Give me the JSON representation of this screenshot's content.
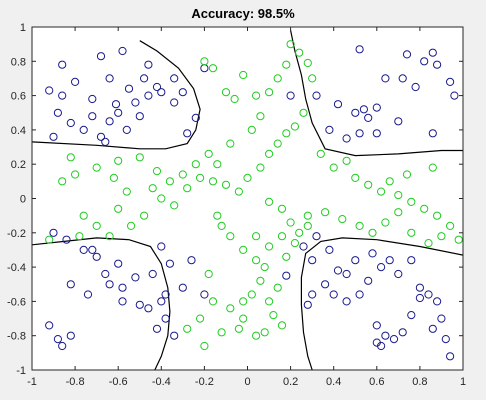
{
  "chart_data": {
    "type": "scatter",
    "title": "Accuracy: 98.5%",
    "xlabel": "",
    "ylabel": "",
    "xlim": [
      -1,
      1
    ],
    "ylim": [
      -1,
      1
    ],
    "x_ticks": [
      -1,
      -0.8,
      -0.6,
      -0.4,
      -0.2,
      0,
      0.2,
      0.4,
      0.6,
      0.8,
      1
    ],
    "y_ticks": [
      -1,
      -0.8,
      -0.6,
      -0.4,
      -0.2,
      0,
      0.2,
      0.4,
      0.6,
      0.8,
      1
    ],
    "grid": false,
    "colors": {
      "class_blue": "#1a1a8c",
      "class_green": "#22cc22",
      "boundary": "#000000",
      "axes_bg": "#ffffff",
      "figure_bg": "#f0f0f0"
    },
    "series": [
      {
        "marker": "circle-open",
        "color": "#1a1a8c",
        "points": [
          [
            -0.92,
            0.63
          ],
          [
            -0.86,
            0.6
          ],
          [
            -0.8,
            0.68
          ],
          [
            -0.72,
            0.58
          ],
          [
            -0.64,
            0.7
          ],
          [
            -0.58,
            0.86
          ],
          [
            -0.76,
            0.4
          ],
          [
            -0.88,
            0.5
          ],
          [
            -0.82,
            0.44
          ],
          [
            -0.68,
            0.36
          ],
          [
            -0.6,
            0.5
          ],
          [
            -0.52,
            0.56
          ],
          [
            -0.46,
            0.6
          ],
          [
            -0.4,
            0.62
          ],
          [
            -0.5,
            0.48
          ],
          [
            -0.64,
            0.45
          ],
          [
            -0.72,
            0.48
          ],
          [
            -0.66,
            0.33
          ],
          [
            -0.9,
            0.36
          ],
          [
            -0.86,
            0.78
          ],
          [
            -0.56,
            0.4
          ],
          [
            -0.48,
            0.7
          ],
          [
            -0.42,
            0.65
          ],
          [
            -0.34,
            0.7
          ],
          [
            -0.3,
            0.62
          ],
          [
            -0.24,
            0.47
          ],
          [
            -0.2,
            0.76
          ],
          [
            -0.68,
            0.83
          ],
          [
            -0.61,
            0.55
          ],
          [
            -0.28,
            0.38
          ],
          [
            -0.34,
            0.56
          ],
          [
            -0.55,
            0.64
          ],
          [
            -0.46,
            0.78
          ],
          [
            0.2,
            0.6
          ],
          [
            0.32,
            0.6
          ],
          [
            0.38,
            0.4
          ],
          [
            0.42,
            0.55
          ],
          [
            0.5,
            0.5
          ],
          [
            0.46,
            0.35
          ],
          [
            0.52,
            0.38
          ],
          [
            0.56,
            0.47
          ],
          [
            0.6,
            0.53
          ],
          [
            0.64,
            0.7
          ],
          [
            0.72,
            0.7
          ],
          [
            0.78,
            0.65
          ],
          [
            0.82,
            0.8
          ],
          [
            0.86,
            0.85
          ],
          [
            0.88,
            0.78
          ],
          [
            0.94,
            0.68
          ],
          [
            0.7,
            0.45
          ],
          [
            0.6,
            0.38
          ],
          [
            0.54,
            0.52
          ],
          [
            0.74,
            0.84
          ],
          [
            0.86,
            0.38
          ],
          [
            0.52,
            0.87
          ],
          [
            0.96,
            0.6
          ],
          [
            -0.9,
            -0.2
          ],
          [
            -0.82,
            -0.5
          ],
          [
            -0.76,
            -0.3
          ],
          [
            -0.7,
            -0.34
          ],
          [
            -0.64,
            -0.5
          ],
          [
            -0.58,
            -0.52
          ],
          [
            -0.6,
            -0.38
          ],
          [
            -0.52,
            -0.46
          ],
          [
            -0.44,
            -0.44
          ],
          [
            -0.4,
            -0.6
          ],
          [
            -0.46,
            -0.64
          ],
          [
            -0.42,
            -0.76
          ],
          [
            -0.38,
            -0.7
          ],
          [
            -0.5,
            -0.62
          ],
          [
            -0.72,
            -0.3
          ],
          [
            -0.66,
            -0.44
          ],
          [
            -0.74,
            -0.56
          ],
          [
            -0.92,
            -0.74
          ],
          [
            -0.86,
            -0.86
          ],
          [
            -0.82,
            -0.8
          ],
          [
            -0.58,
            -0.6
          ],
          [
            -0.4,
            -0.28
          ],
          [
            -0.36,
            -0.38
          ],
          [
            -0.34,
            -0.8
          ],
          [
            -0.38,
            -0.56
          ],
          [
            -0.3,
            -0.52
          ],
          [
            -0.26,
            -0.36
          ],
          [
            -0.2,
            -0.56
          ],
          [
            -0.88,
            -0.82
          ],
          [
            -0.84,
            -0.24
          ],
          [
            0.26,
            -0.28
          ],
          [
            0.32,
            -0.22
          ],
          [
            0.3,
            -0.36
          ],
          [
            0.38,
            -0.3
          ],
          [
            0.36,
            -0.5
          ],
          [
            0.42,
            -0.42
          ],
          [
            0.46,
            -0.6
          ],
          [
            0.52,
            -0.56
          ],
          [
            0.56,
            -0.48
          ],
          [
            0.5,
            -0.36
          ],
          [
            0.58,
            -0.32
          ],
          [
            0.62,
            -0.4
          ],
          [
            0.66,
            -0.36
          ],
          [
            0.7,
            -0.44
          ],
          [
            0.76,
            -0.36
          ],
          [
            0.8,
            -0.52
          ],
          [
            0.84,
            -0.56
          ],
          [
            0.88,
            -0.6
          ],
          [
            0.9,
            -0.7
          ],
          [
            0.86,
            -0.76
          ],
          [
            0.92,
            -0.82
          ],
          [
            0.6,
            -0.74
          ],
          [
            0.64,
            -0.8
          ],
          [
            0.6,
            -0.84
          ],
          [
            0.62,
            -0.86
          ],
          [
            0.68,
            -0.82
          ],
          [
            0.72,
            -0.78
          ],
          [
            0.76,
            -0.68
          ],
          [
            0.8,
            -0.58
          ],
          [
            0.46,
            -0.44
          ],
          [
            0.4,
            -0.56
          ],
          [
            0.28,
            -0.62
          ],
          [
            0.3,
            -0.56
          ],
          [
            0.94,
            -0.92
          ],
          [
            0.18,
            -0.45
          ]
        ]
      },
      {
        "marker": "circle-open",
        "color": "#22cc22",
        "points": [
          [
            -0.2,
            0.8
          ],
          [
            -0.16,
            0.76
          ],
          [
            -0.1,
            0.62
          ],
          [
            -0.06,
            0.58
          ],
          [
            -0.02,
            0.72
          ],
          [
            0.04,
            0.6
          ],
          [
            0.06,
            0.48
          ],
          [
            0.1,
            0.62
          ],
          [
            0.14,
            0.7
          ],
          [
            0.18,
            0.78
          ],
          [
            0.2,
            0.9
          ],
          [
            0.24,
            0.85
          ],
          [
            0.28,
            0.79
          ],
          [
            0.3,
            0.7
          ],
          [
            0.02,
            0.4
          ],
          [
            -0.08,
            0.32
          ],
          [
            -0.14,
            0.2
          ],
          [
            -0.18,
            0.26
          ],
          [
            -0.24,
            0.2
          ],
          [
            -0.3,
            0.14
          ],
          [
            -0.36,
            0.1
          ],
          [
            -0.42,
            0.16
          ],
          [
            -0.5,
            0.24
          ],
          [
            -0.6,
            0.22
          ],
          [
            -0.7,
            0.18
          ],
          [
            -0.8,
            0.14
          ],
          [
            -0.86,
            0.1
          ],
          [
            -0.82,
            0.24
          ],
          [
            -0.62,
            0.12
          ],
          [
            -0.56,
            0.04
          ],
          [
            -0.48,
            -0.1
          ],
          [
            -0.44,
            0.06
          ],
          [
            -0.4,
            0.0
          ],
          [
            -0.34,
            -0.04
          ],
          [
            -0.28,
            0.06
          ],
          [
            -0.22,
            0.12
          ],
          [
            -0.16,
            0.1
          ],
          [
            -0.1,
            0.08
          ],
          [
            -0.04,
            0.04
          ],
          [
            0.0,
            0.12
          ],
          [
            0.06,
            0.18
          ],
          [
            0.1,
            0.26
          ],
          [
            0.14,
            0.32
          ],
          [
            0.18,
            0.38
          ],
          [
            0.22,
            0.42
          ],
          [
            0.26,
            0.5
          ],
          [
            0.34,
            0.26
          ],
          [
            0.4,
            0.18
          ],
          [
            0.46,
            0.22
          ],
          [
            0.5,
            0.12
          ],
          [
            0.56,
            0.08
          ],
          [
            0.62,
            0.04
          ],
          [
            0.7,
            0.02
          ],
          [
            0.76,
            -0.02
          ],
          [
            0.82,
            -0.06
          ],
          [
            0.88,
            -0.1
          ],
          [
            0.94,
            -0.16
          ],
          [
            0.66,
            0.1
          ],
          [
            0.74,
            0.14
          ],
          [
            0.86,
            0.18
          ],
          [
            0.1,
            -0.02
          ],
          [
            0.16,
            -0.06
          ],
          [
            0.2,
            -0.14
          ],
          [
            0.24,
            -0.2
          ],
          [
            0.28,
            -0.16
          ],
          [
            0.16,
            -0.22
          ],
          [
            0.1,
            -0.28
          ],
          [
            0.04,
            -0.36
          ],
          [
            -0.02,
            -0.3
          ],
          [
            -0.08,
            -0.22
          ],
          [
            -0.12,
            -0.16
          ],
          [
            -0.14,
            -0.1
          ],
          [
            0.04,
            -0.22
          ],
          [
            0.08,
            -0.4
          ],
          [
            0.18,
            -0.34
          ],
          [
            0.22,
            -0.26
          ],
          [
            0.28,
            -0.1
          ],
          [
            0.36,
            -0.08
          ],
          [
            0.44,
            -0.12
          ],
          [
            0.52,
            -0.16
          ],
          [
            0.58,
            -0.2
          ],
          [
            0.64,
            -0.14
          ],
          [
            0.7,
            -0.08
          ],
          [
            0.76,
            -0.2
          ],
          [
            0.84,
            -0.26
          ],
          [
            0.9,
            -0.22
          ],
          [
            0.98,
            -0.24
          ],
          [
            -0.76,
            -0.1
          ],
          [
            -0.7,
            -0.16
          ],
          [
            -0.64,
            -0.22
          ],
          [
            -0.78,
            -0.22
          ],
          [
            -0.92,
            -0.24
          ],
          [
            -0.6,
            -0.06
          ],
          [
            -0.54,
            -0.16
          ],
          [
            -0.18,
            -0.44
          ],
          [
            -0.16,
            -0.6
          ],
          [
            -0.22,
            -0.7
          ],
          [
            -0.28,
            -0.76
          ],
          [
            -0.2,
            -0.86
          ],
          [
            -0.12,
            -0.78
          ],
          [
            -0.08,
            -0.64
          ],
          [
            -0.02,
            -0.7
          ],
          [
            0.02,
            -0.56
          ],
          [
            0.06,
            -0.48
          ],
          [
            0.1,
            -0.6
          ],
          [
            0.14,
            -0.52
          ],
          [
            0.08,
            -0.78
          ],
          [
            0.04,
            -0.8
          ],
          [
            0.16,
            -0.74
          ],
          [
            0.12,
            -0.68
          ],
          [
            -0.04,
            -0.76
          ],
          [
            -0.02,
            -0.6
          ]
        ]
      }
    ],
    "boundaries": [
      {
        "x": [
          -1.0,
          -0.7,
          -0.5,
          -0.38,
          -0.28,
          -0.24,
          -0.22,
          -0.25,
          -0.32,
          -0.42,
          -0.5
        ],
        "y": [
          0.33,
          0.31,
          0.29,
          0.29,
          0.32,
          0.4,
          0.52,
          0.64,
          0.76,
          0.86,
          0.92
        ]
      },
      {
        "x": [
          0.2,
          0.22,
          0.25,
          0.27,
          0.3,
          0.36,
          0.5,
          0.7,
          0.9,
          1.0
        ],
        "y": [
          0.98,
          0.86,
          0.72,
          0.58,
          0.44,
          0.29,
          0.25,
          0.26,
          0.28,
          0.28
        ]
      },
      {
        "x": [
          -1.0,
          -0.85,
          -0.7,
          -0.55,
          -0.45,
          -0.4,
          -0.37,
          -0.36,
          -0.37,
          -0.4,
          -0.43
        ],
        "y": [
          -0.27,
          -0.25,
          -0.23,
          -0.24,
          -0.28,
          -0.38,
          -0.52,
          -0.66,
          -0.8,
          -0.92,
          -1.0
        ]
      },
      {
        "x": [
          1.0,
          0.8,
          0.6,
          0.44,
          0.34,
          0.27,
          0.25,
          0.25,
          0.26,
          0.28,
          0.3
        ],
        "y": [
          -0.33,
          -0.28,
          -0.24,
          -0.23,
          -0.25,
          -0.32,
          -0.46,
          -0.62,
          -0.78,
          -0.92,
          -1.0
        ]
      }
    ]
  }
}
